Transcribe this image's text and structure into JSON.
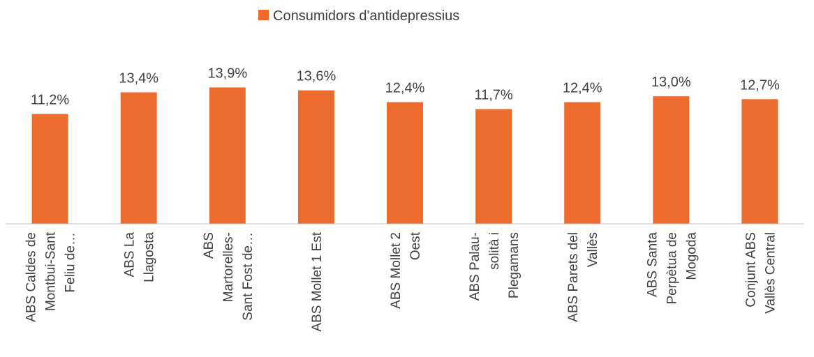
{
  "chart_data": {
    "type": "bar",
    "legend": {
      "position": "top",
      "entries": [
        "Consumidors d'antidepressius"
      ]
    },
    "series": [
      {
        "name": "Consumidors d'antidepressius",
        "color": "#EE6B2E",
        "values": [
          11.2,
          13.4,
          13.9,
          13.6,
          12.4,
          11.7,
          12.4,
          13.0,
          12.7
        ]
      }
    ],
    "data_labels": [
      "11,2%",
      "13,4%",
      "13,9%",
      "13,6%",
      "12,4%",
      "11,7%",
      "12,4%",
      "13,0%",
      "12,7%"
    ],
    "categories": [
      "ABS Caldes de Montbui-Sant Feliu de…",
      "ABS La Llagosta",
      "ABS Martorelles-Sant Fost de…",
      "ABS Mollet 1 Est",
      "ABS Mollet 2 Oest",
      "ABS Palau-solità i Plegamans",
      "ABS Parets del Vallès",
      "ABS Santa Perpètua de Mogoda",
      "Conjunt ABS Vallès Central"
    ],
    "category_label_lines": [
      [
        "ABS Caldes de",
        "Montbui-Sant",
        "Feliu de…"
      ],
      [
        "ABS La",
        "Llagosta"
      ],
      [
        "ABS",
        "Martorelles-",
        "Sant Fost de…"
      ],
      [
        "ABS Mollet 1 Est"
      ],
      [
        "ABS Mollet 2",
        "Oest"
      ],
      [
        "ABS Palau-",
        "solità i",
        "Plegamans"
      ],
      [
        "ABS Parets del",
        "Vallès"
      ],
      [
        "ABS Santa",
        "Perpètua de",
        "Mogoda"
      ],
      [
        "Conjunt ABS",
        "Vallès Central"
      ]
    ],
    "ylim": [
      0,
      14
    ],
    "grid": false,
    "axis_color": "#BFBFBF"
  }
}
